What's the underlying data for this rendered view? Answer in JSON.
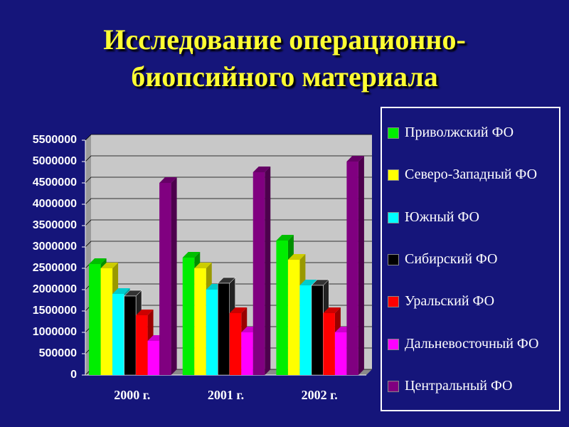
{
  "chart_data": {
    "type": "bar3d",
    "title": "Исследование операционно-\nбиопсийного материала",
    "categories": [
      "2000 г.",
      "2001 г.",
      "2002 г."
    ],
    "series": [
      {
        "name": "Приволжский ФО",
        "color": "#00ee00",
        "values": [
          2600000,
          2750000,
          3150000
        ]
      },
      {
        "name": "Северо-Западный ФО",
        "color": "#ffff00",
        "values": [
          2500000,
          2500000,
          2700000
        ]
      },
      {
        "name": "Южный ФО",
        "color": "#00ffff",
        "values": [
          1900000,
          2000000,
          2100000
        ]
      },
      {
        "name": "Сибирский ФО",
        "color": "#000000",
        "values": [
          1850000,
          2150000,
          2100000
        ]
      },
      {
        "name": "Уральский ФО",
        "color": "#ff0000",
        "values": [
          1400000,
          1450000,
          1450000
        ]
      },
      {
        "name": "Дальневосточный ФО",
        "color": "#ff00ff",
        "values": [
          800000,
          1000000,
          1000000
        ]
      },
      {
        "name": "Центральный ФО",
        "color": "#800080",
        "values": [
          4500000,
          4750000,
          5000000
        ]
      }
    ],
    "ylim": [
      0,
      5500000
    ],
    "yticks": [
      0,
      500000,
      1000000,
      1500000,
      2000000,
      2500000,
      3000000,
      3500000,
      4000000,
      4500000,
      5000000,
      5500000
    ],
    "grid": true
  }
}
